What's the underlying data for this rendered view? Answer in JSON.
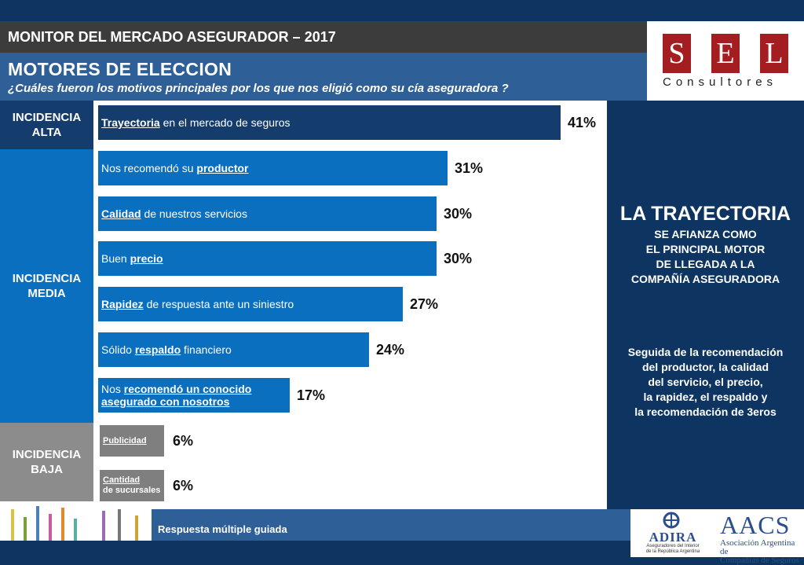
{
  "header": {
    "monitor": "MONITOR DEL MERCADO ASEGURADOR – 2017",
    "title": "MOTORES DE ELECCION",
    "question": "¿Cuáles fueron los motivos principales por los que nos eligió como su cía aseguradora ?"
  },
  "logo": {
    "letters": [
      "S",
      "E",
      "L"
    ],
    "sub": "Consultores"
  },
  "levels": {
    "alta": "INCIDENCIA ALTA",
    "media": "INCIDENCIA MEDIA",
    "baja": "INCIDENCIA BAJA"
  },
  "chart_data": {
    "type": "bar",
    "orientation": "horizontal",
    "categories": [
      "Trayectoria en el mercado de seguros",
      "Nos recomendó su productor",
      "Calidad de nuestros servicios",
      "Buen precio",
      "Rapidez de respuesta ante un siniestro",
      "Sólido respaldo financiero",
      "Nos recomendó un conocido asegurado con nosotros",
      "Publicidad",
      "Cantidad de sucursales"
    ],
    "values": [
      41,
      31,
      30,
      30,
      27,
      24,
      17,
      6,
      6
    ],
    "value_labels": [
      "41%",
      "31%",
      "30%",
      "30%",
      "27%",
      "24%",
      "17%",
      "6%",
      "6%"
    ],
    "colors": [
      "#143c6d",
      "#0b6fc0",
      "#0b6fc0",
      "#0b6fc0",
      "#0b6fc0",
      "#0b6fc0",
      "#0b6fc0",
      "#7f7f7f",
      "#7f7f7f"
    ],
    "xlim": [
      0,
      41
    ]
  },
  "bar_labels": [
    {
      "u": "Trayectoria",
      "rest": " en el mercado de seguros"
    },
    {
      "pre": "Nos recomendó su ",
      "u": "productor"
    },
    {
      "u": "Calidad",
      "rest": " de nuestros servicios"
    },
    {
      "pre": "Buen ",
      "u": "precio"
    },
    {
      "u": "Rapidez",
      "rest": " de respuesta ante un siniestro"
    },
    {
      "pre": "Sólido ",
      "u": "respaldo",
      "rest": " financiero"
    },
    {
      "pre": "Nos ",
      "u": "recomendó un conocido",
      "line2": "asegurado con nosotros"
    },
    {
      "u": "Publicidad"
    },
    {
      "u": "Cantidad",
      "line2": "de sucursales"
    }
  ],
  "side": {
    "big": "LA TRAYECTORIA",
    "lines": [
      "SE AFIANZA COMO",
      "EL PRINCIPAL MOTOR",
      "DE LLEGADA A LA",
      "COMPAÑÍA ASEGURADORA"
    ],
    "para": [
      "Seguida de la recomendación",
      "del productor, la calidad",
      "del servicio, el precio,",
      "la rapidez, el respaldo y",
      "la recomendación de 3eros"
    ]
  },
  "footer": {
    "note": "Respuesta múltiple guiada"
  },
  "partners": {
    "adira": "ADIRA",
    "adira_sub1": "Aseguradores del Interior",
    "adira_sub2": "de la República Argentina",
    "aacs": "AACS",
    "aacs_sub1": "Asociación Argentina de",
    "aacs_sub2": "Compañías de Seguros"
  }
}
